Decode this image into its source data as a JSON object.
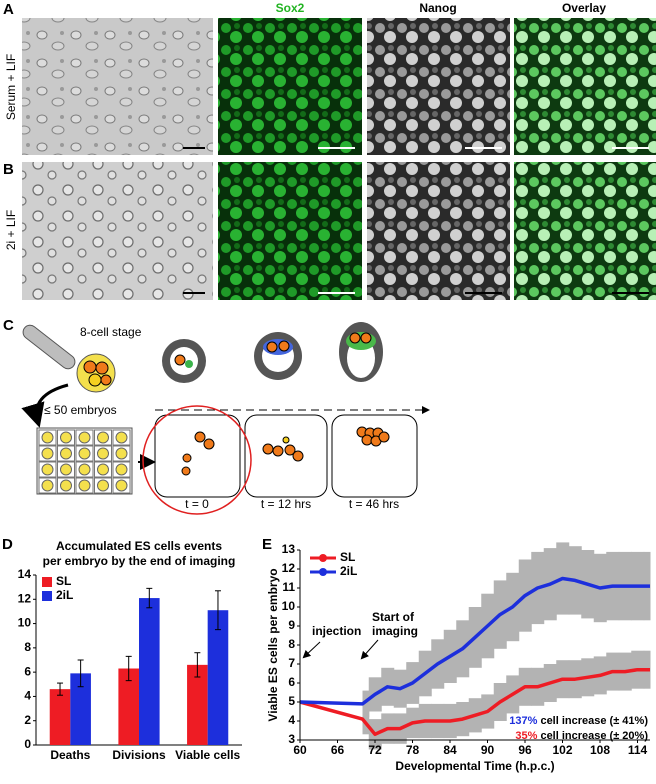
{
  "figure": {
    "panel_a": {
      "letter": "A",
      "row_label": "Serum + LIF"
    },
    "panel_b": {
      "letter": "B",
      "row_label": "2i + LIF"
    },
    "columns": [
      "Sox2",
      "Nanog",
      "Overlay"
    ],
    "panel_c": {
      "letter": "C",
      "stage": "8-cell stage",
      "embryos": "≤ 50 embryos",
      "times": [
        "t = 0",
        "t = 12 hrs",
        "t = 46 hrs"
      ]
    }
  },
  "chart_data": [
    {
      "type": "bar",
      "panel": "D",
      "title": [
        "Accumulated ES cells events",
        "per embryo by the end of imaging"
      ],
      "categories": [
        "Deaths",
        "Divisions",
        "Viable cells"
      ],
      "series": [
        {
          "name": "SL",
          "color": "#ee1c24",
          "values": [
            4.6,
            6.3,
            6.6
          ],
          "errors": [
            0.5,
            1.0,
            1.0
          ]
        },
        {
          "name": "2iL",
          "color": "#1d2fdc",
          "values": [
            5.9,
            12.1,
            11.1
          ],
          "errors": [
            1.1,
            0.8,
            1.6
          ]
        }
      ],
      "ylim": [
        0,
        14
      ],
      "yticks": [
        0,
        2,
        4,
        6,
        8,
        10,
        12,
        14
      ]
    },
    {
      "type": "line",
      "panel": "E",
      "x_label": "Developmental Time (h.p.c.)",
      "y_label": "Viable ES cells per embryo",
      "x": [
        60,
        70,
        72,
        74,
        76,
        78,
        80,
        82,
        84,
        86,
        88,
        90,
        92,
        94,
        96,
        98,
        100,
        102,
        104,
        106,
        108,
        110,
        112,
        114,
        116
      ],
      "series": [
        {
          "name": "SL",
          "color": "#ee1c24",
          "values": [
            5,
            4.1,
            3.3,
            3.6,
            3.6,
            3.9,
            4.0,
            4.0,
            4.0,
            4.1,
            4.3,
            4.5,
            5.0,
            5.4,
            5.8,
            5.8,
            6.0,
            6.2,
            6.2,
            6.3,
            6.4,
            6.6,
            6.6,
            6.7,
            6.7
          ],
          "errors": [
            null,
            0.8,
            0.8,
            0.8,
            0.8,
            0.8,
            0.9,
            0.9,
            0.9,
            0.9,
            0.9,
            0.9,
            1.0,
            1.0,
            1.0,
            1.0,
            1.0,
            1.0,
            1.0,
            1.0,
            1.0,
            1.0,
            1.0,
            1.0,
            1.0
          ]
        },
        {
          "name": "2iL",
          "color": "#1d2fdc",
          "values": [
            5,
            4.9,
            5.4,
            5.8,
            5.7,
            6.0,
            6.5,
            7.0,
            7.4,
            7.8,
            8.4,
            9.0,
            9.6,
            10.0,
            10.6,
            11.0,
            11.2,
            11.5,
            11.4,
            11.2,
            11.0,
            11.1,
            11.1,
            11.1,
            11.1
          ],
          "errors": [
            null,
            0.7,
            0.9,
            1.0,
            1.0,
            1.1,
            1.2,
            1.3,
            1.4,
            1.5,
            1.6,
            1.7,
            1.8,
            1.8,
            1.9,
            1.9,
            1.9,
            1.9,
            1.8,
            1.8,
            1.8,
            1.8,
            1.8,
            1.8,
            1.8
          ]
        }
      ],
      "band_color": "#b3b3b3",
      "xlim": [
        60,
        116
      ],
      "xticks": [
        60,
        66,
        72,
        78,
        84,
        90,
        96,
        102,
        108,
        114
      ],
      "ylim": [
        3,
        13
      ],
      "yticks": [
        3,
        4,
        5,
        6,
        7,
        8,
        9,
        10,
        11,
        12,
        13
      ],
      "annotations": {
        "injection": "injection",
        "start": [
          "Start of",
          "imaging"
        ],
        "summary": [
          {
            "pct": "137%",
            "text": " cell increase (± 41%)"
          },
          {
            "pct": "35%",
            "text": " cell increase (± 20%)"
          }
        ]
      }
    }
  ]
}
